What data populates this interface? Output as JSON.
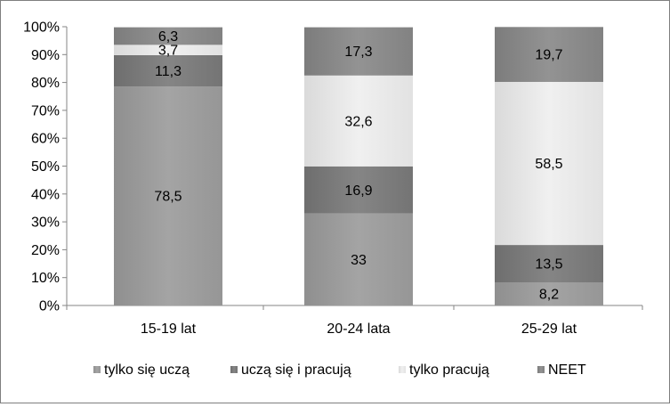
{
  "chart_data": {
    "type": "bar",
    "stacked": true,
    "percent": true,
    "categories": [
      "15-19 lat",
      "20-24 lata",
      "25-29 lat"
    ],
    "series": [
      {
        "name": "tylko się uczą",
        "values": [
          78.5,
          33,
          8.2
        ],
        "color": "#9e9e9e"
      },
      {
        "name": "uczą się i pracują",
        "values": [
          11.3,
          16.9,
          13.5
        ],
        "color": "#7d7d7d"
      },
      {
        "name": "tylko pracują",
        "values": [
          3.7,
          32.6,
          58.5
        ],
        "color": "#e6e6e6"
      },
      {
        "name": "NEET",
        "values": [
          6.3,
          17.3,
          19.7
        ],
        "color": "#8a8a8a"
      }
    ],
    "labels": [
      [
        "78,5",
        "33",
        "8,2"
      ],
      [
        "11,3",
        "16,9",
        "13,5"
      ],
      [
        "3,7",
        "32,6",
        "58,5"
      ],
      [
        "6,3",
        "17,3",
        "19,7"
      ]
    ],
    "y_ticks": [
      "0%",
      "10%",
      "20%",
      "30%",
      "40%",
      "50%",
      "60%",
      "70%",
      "80%",
      "90%",
      "100%"
    ],
    "ylim": [
      0,
      100
    ],
    "grid": false,
    "legend_position": "bottom"
  }
}
